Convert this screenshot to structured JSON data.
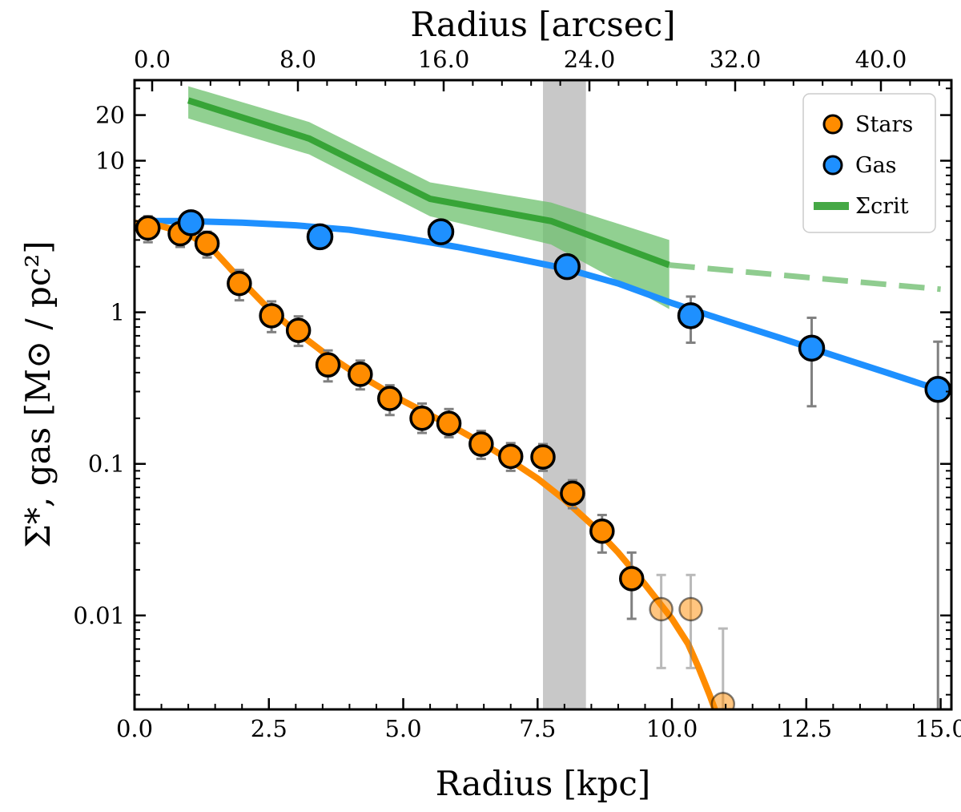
{
  "chart_data": {
    "type": "scatter",
    "xlabel": "Radius [kpc]",
    "xlabel_top": "Radius [arcsec]",
    "ylabel": "Σ*, gas [M⊙ / pc²]",
    "xlim": [
      0.0,
      15.2
    ],
    "ylim": [
      0.0024,
      34
    ],
    "yscale": "log",
    "x_ticks": [
      "0.0",
      "2.5",
      "5.0",
      "7.5",
      "10.0",
      "12.5",
      "15.0"
    ],
    "x_ticks_top": [
      "0.0",
      "8.0",
      "16.0",
      "24.0",
      "32.0",
      "40.0"
    ],
    "y_ticks": [
      "0.01",
      "0.1",
      "1",
      "10",
      "20"
    ],
    "legend": {
      "position": "top-right",
      "entries": [
        "Stars",
        "Gas",
        "Σcrit"
      ]
    },
    "shaded_band": {
      "x": [
        7.6,
        8.4
      ],
      "color": "#c8c8c8"
    },
    "colors": {
      "stars": "#ff8c00",
      "gas": "#1e90ff",
      "crit": "#2e9e2e",
      "crit_band": "#6cc06c",
      "errorbar": "#808080"
    },
    "series": [
      {
        "name": "Stars",
        "points": [
          {
            "x": 0.25,
            "y": 3.6,
            "err": [
              2.9,
              4.3
            ]
          },
          {
            "x": 0.85,
            "y": 3.3,
            "err": [
              2.7,
              3.9
            ]
          },
          {
            "x": 1.35,
            "y": 2.85,
            "err": [
              2.3,
              3.4
            ]
          },
          {
            "x": 1.95,
            "y": 1.55,
            "err": [
              1.2,
              1.9
            ]
          },
          {
            "x": 2.55,
            "y": 0.95,
            "err": [
              0.74,
              1.18
            ]
          },
          {
            "x": 3.05,
            "y": 0.76,
            "err": [
              0.6,
              0.94
            ]
          },
          {
            "x": 3.6,
            "y": 0.45,
            "err": [
              0.35,
              0.56
            ]
          },
          {
            "x": 4.2,
            "y": 0.39,
            "err": [
              0.31,
              0.48
            ]
          },
          {
            "x": 4.75,
            "y": 0.27,
            "err": [
              0.21,
              0.33
            ]
          },
          {
            "x": 5.35,
            "y": 0.2,
            "err": [
              0.16,
              0.25
            ]
          },
          {
            "x": 5.85,
            "y": 0.185,
            "err": [
              0.15,
              0.23
            ]
          },
          {
            "x": 6.45,
            "y": 0.135,
            "err": [
              0.108,
              0.165
            ]
          },
          {
            "x": 7.0,
            "y": 0.112,
            "err": [
              0.09,
              0.137
            ]
          },
          {
            "x": 7.6,
            "y": 0.111,
            "err": [
              0.09,
              0.135
            ]
          },
          {
            "x": 8.15,
            "y": 0.064,
            "err": [
              0.051,
              0.078
            ]
          },
          {
            "x": 8.7,
            "y": 0.036,
            "err": [
              0.026,
              0.046
            ]
          },
          {
            "x": 9.25,
            "y": 0.0175,
            "err": [
              0.0095,
              0.026
            ]
          }
        ],
        "faded_points": [
          {
            "x": 9.8,
            "y": 0.011,
            "err": [
              0.0045,
              0.0185
            ]
          },
          {
            "x": 10.35,
            "y": 0.011,
            "err": [
              0.0045,
              0.0185
            ]
          },
          {
            "x": 10.95,
            "y": 0.0026,
            "err": [
              0.0005,
              0.0082
            ]
          }
        ],
        "fit_curve": [
          {
            "x": 0.0,
            "y": 3.9
          },
          {
            "x": 0.5,
            "y": 3.7
          },
          {
            "x": 1.0,
            "y": 3.3
          },
          {
            "x": 1.5,
            "y": 2.5
          },
          {
            "x": 2.0,
            "y": 1.6
          },
          {
            "x": 2.5,
            "y": 1.05
          },
          {
            "x": 3.0,
            "y": 0.75
          },
          {
            "x": 3.5,
            "y": 0.55
          },
          {
            "x": 4.0,
            "y": 0.42
          },
          {
            "x": 4.5,
            "y": 0.33
          },
          {
            "x": 5.0,
            "y": 0.26
          },
          {
            "x": 5.5,
            "y": 0.21
          },
          {
            "x": 6.0,
            "y": 0.17
          },
          {
            "x": 6.5,
            "y": 0.135
          },
          {
            "x": 7.0,
            "y": 0.105
          },
          {
            "x": 7.5,
            "y": 0.08
          },
          {
            "x": 8.0,
            "y": 0.058
          },
          {
            "x": 8.5,
            "y": 0.04
          },
          {
            "x": 9.0,
            "y": 0.026
          },
          {
            "x": 9.5,
            "y": 0.016
          },
          {
            "x": 10.0,
            "y": 0.0095
          },
          {
            "x": 10.3,
            "y": 0.0065
          },
          {
            "x": 10.5,
            "y": 0.0045
          },
          {
            "x": 10.7,
            "y": 0.003
          },
          {
            "x": 10.8,
            "y": 0.0024
          }
        ]
      },
      {
        "name": "Gas",
        "points": [
          {
            "x": 1.05,
            "y": 3.9
          },
          {
            "x": 3.45,
            "y": 3.15
          },
          {
            "x": 5.7,
            "y": 3.4
          },
          {
            "x": 8.05,
            "y": 2.0
          },
          {
            "x": 10.35,
            "y": 0.95,
            "err": [
              0.63,
              1.27
            ]
          },
          {
            "x": 12.6,
            "y": 0.58,
            "err": [
              0.24,
              0.92
            ]
          },
          {
            "x": 14.95,
            "y": 0.31,
            "err": [
              0.0024,
              0.64
            ]
          }
        ],
        "fit_curve": [
          {
            "x": 0.25,
            "y": 4.0
          },
          {
            "x": 1.0,
            "y": 4.0
          },
          {
            "x": 2.0,
            "y": 3.9
          },
          {
            "x": 3.0,
            "y": 3.75
          },
          {
            "x": 4.0,
            "y": 3.5
          },
          {
            "x": 5.0,
            "y": 3.1
          },
          {
            "x": 6.0,
            "y": 2.7
          },
          {
            "x": 7.0,
            "y": 2.3
          },
          {
            "x": 8.0,
            "y": 1.95
          },
          {
            "x": 9.0,
            "y": 1.55
          },
          {
            "x": 10.0,
            "y": 1.15
          },
          {
            "x": 11.0,
            "y": 0.88
          },
          {
            "x": 12.0,
            "y": 0.68
          },
          {
            "x": 13.0,
            "y": 0.52
          },
          {
            "x": 14.0,
            "y": 0.4
          },
          {
            "x": 14.95,
            "y": 0.31
          }
        ]
      },
      {
        "name": "Σcrit",
        "line": [
          {
            "x": 1.0,
            "y": 25
          },
          {
            "x": 3.25,
            "y": 14
          },
          {
            "x": 5.5,
            "y": 5.6
          },
          {
            "x": 7.75,
            "y": 4.0
          },
          {
            "x": 9.95,
            "y": 2.05
          }
        ],
        "band": [
          {
            "x": 1.0,
            "lo": 19,
            "hi": 31
          },
          {
            "x": 3.25,
            "lo": 11,
            "hi": 18
          },
          {
            "x": 5.5,
            "lo": 4.3,
            "hi": 7.2
          },
          {
            "x": 7.75,
            "lo": 2.8,
            "hi": 5.3
          },
          {
            "x": 9.95,
            "lo": 1.05,
            "hi": 3.0
          }
        ],
        "extrapolated": [
          {
            "x": 9.95,
            "y": 2.05
          },
          {
            "x": 12.5,
            "y": 1.7
          },
          {
            "x": 15.0,
            "y": 1.42
          }
        ]
      }
    ]
  }
}
